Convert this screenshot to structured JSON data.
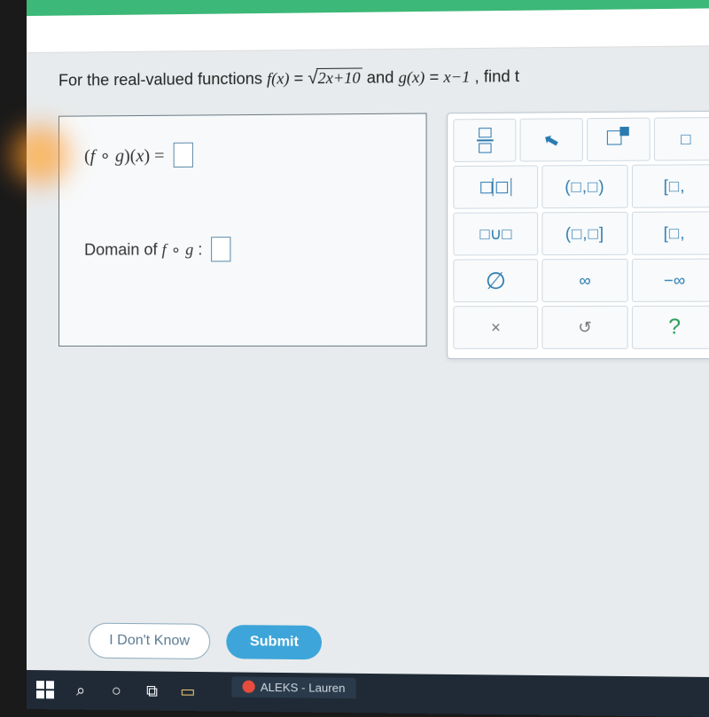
{
  "question": {
    "prefix": "For the real-valued functions ",
    "f_lhs": "f(x)",
    "eq": " = ",
    "sqrt_body": "2x+10",
    "mid": " and ",
    "g_lhs": "g(x)",
    "g_rhs": "x−1",
    "suffix": ", find t"
  },
  "answer": {
    "fog_label_open": "(",
    "fog_f": "f",
    "fog_circ": " ∘ ",
    "fog_g": "g",
    "fog_label_close": ")(",
    "fog_x": "x",
    "fog_paren": ")",
    "fog_eq": " = ",
    "domain_label": "Domain of ",
    "domain_f": "f",
    "domain_circ": " ∘ ",
    "domain_g": "g",
    "domain_colon": " : "
  },
  "palette": {
    "r1": {
      "frac": "frac",
      "cursor": "↖",
      "power": "pow",
      "sqrt": "□"
    },
    "r2": {
      "abs": "□|□|",
      "open_open": "(□,□)",
      "closed": "[□,"
    },
    "r3": {
      "union": "□∪□",
      "open_closed": "(□,□]",
      "closed2": "[□,"
    },
    "r4": {
      "empty": "∅",
      "inf": "∞",
      "neg_inf": "−∞"
    },
    "r5": {
      "close": "×",
      "undo": "↺",
      "help": "?"
    }
  },
  "footer": {
    "idk": "I Don't Know",
    "submit": "Submit"
  },
  "taskbar": {
    "aleks": "ALEKS - Lauren"
  }
}
